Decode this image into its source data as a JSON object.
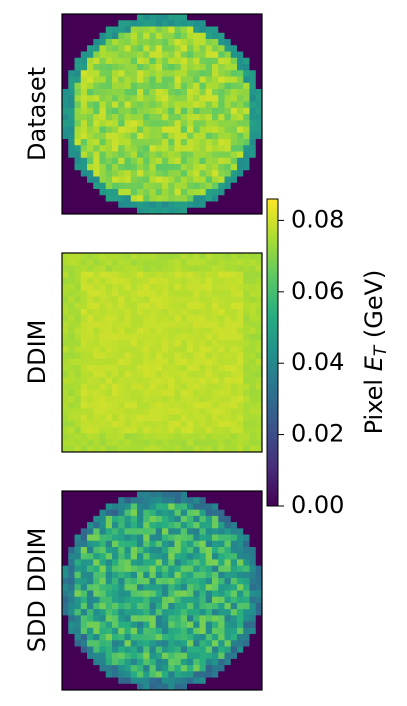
{
  "chart_data": {
    "type": "heatmap",
    "panels": [
      {
        "name": "Dataset",
        "label": "Dataset",
        "pattern": "disk",
        "mean_value": 0.072,
        "edge_value": 0.045,
        "noise": 0.008
      },
      {
        "name": "DDIM",
        "label": "DDIM",
        "pattern": "square",
        "inner_value": 0.078,
        "border_value": 0.075,
        "noise": 0.002
      },
      {
        "name": "SDD DDIM",
        "label": "SDD DDIM",
        "pattern": "disk",
        "mean_value": 0.053,
        "edge_value": 0.035,
        "noise": 0.016
      }
    ],
    "colorbar": {
      "label_prefix": "Pixel ",
      "label_italic": "E",
      "label_subscript": "T",
      "label_suffix": " (GeV)",
      "ticks": [
        "0.00",
        "0.02",
        "0.04",
        "0.06",
        "0.08"
      ],
      "tick_values": [
        0,
        0.02,
        0.04,
        0.06,
        0.08
      ],
      "range": [
        0,
        0.086
      ],
      "colormap": "viridis"
    },
    "grid": false
  }
}
